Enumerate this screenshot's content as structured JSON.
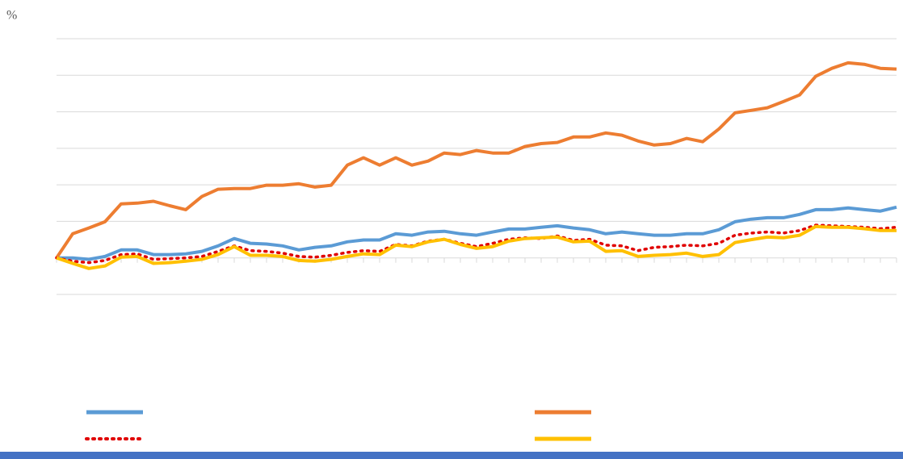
{
  "chart_data": {
    "type": "line",
    "y_label": "%",
    "categories": [
      null,
      null,
      null,
      null,
      null,
      null,
      null,
      null,
      null,
      null,
      null,
      null,
      null,
      null,
      null,
      null,
      null,
      null,
      null,
      null,
      null,
      null,
      null,
      null,
      null,
      null,
      null,
      null,
      null,
      null,
      null,
      null,
      null,
      null,
      null,
      null,
      null,
      null,
      null,
      null,
      null,
      null,
      null,
      null,
      null,
      null,
      null,
      null,
      null,
      null,
      null,
      null,
      null
    ],
    "ylim": [
      -1,
      6
    ],
    "yticks": [
      -1,
      0,
      1,
      2,
      3,
      4,
      5,
      6
    ],
    "grid": true,
    "series": [
      {
        "color": "#5b9bd5",
        "dash": "solid",
        "values": [
          0,
          0,
          -0.04,
          0.04,
          0.22,
          0.22,
          0.09,
          0.09,
          0.11,
          0.18,
          0.33,
          0.53,
          0.4,
          0.38,
          0.33,
          0.22,
          0.29,
          0.33,
          0.44,
          0.49,
          0.49,
          0.66,
          0.62,
          0.71,
          0.73,
          0.66,
          0.62,
          0.71,
          0.79,
          0.79,
          0.84,
          0.88,
          0.82,
          0.77,
          0.66,
          0.71,
          0.66,
          0.62,
          0.62,
          0.66,
          0.66,
          0.77,
          0.99,
          1.06,
          1.1,
          1.1,
          1.19,
          1.32,
          1.32,
          1.37,
          1.32,
          1.28,
          1.39
        ]
      },
      {
        "color": "#ed7d31",
        "dash": "solid",
        "values": [
          0,
          0.66,
          0.82,
          0.99,
          1.48,
          1.5,
          1.55,
          1.43,
          1.32,
          1.68,
          1.88,
          1.9,
          1.9,
          1.99,
          1.99,
          2.03,
          1.94,
          1.99,
          2.54,
          2.74,
          2.54,
          2.74,
          2.54,
          2.65,
          2.87,
          2.83,
          2.94,
          2.87,
          2.87,
          3.05,
          3.13,
          3.16,
          3.31,
          3.31,
          3.42,
          3.36,
          3.2,
          3.09,
          3.13,
          3.27,
          3.18,
          3.53,
          3.97,
          4.04,
          4.11,
          4.28,
          4.46,
          4.97,
          5.19,
          5.34,
          5.3,
          5.19,
          5.17
        ]
      },
      {
        "color": "#e00000",
        "dash": "dotted",
        "values": [
          0,
          -0.09,
          -0.13,
          -0.07,
          0.09,
          0.11,
          -0.04,
          -0.02,
          0,
          0.04,
          0.18,
          0.33,
          0.2,
          0.18,
          0.13,
          0.04,
          0.02,
          0.07,
          0.15,
          0.2,
          0.18,
          0.37,
          0.33,
          0.46,
          0.51,
          0.4,
          0.31,
          0.4,
          0.51,
          0.55,
          0.53,
          0.6,
          0.48,
          0.51,
          0.35,
          0.33,
          0.2,
          0.29,
          0.31,
          0.35,
          0.33,
          0.4,
          0.62,
          0.68,
          0.71,
          0.68,
          0.75,
          0.9,
          0.88,
          0.86,
          0.84,
          0.8,
          0.84
        ]
      },
      {
        "color": "#ffc000",
        "dash": "solid",
        "values": [
          0,
          -0.15,
          -0.29,
          -0.22,
          0.02,
          0.04,
          -0.15,
          -0.13,
          -0.09,
          -0.04,
          0.09,
          0.31,
          0.07,
          0.07,
          0.04,
          -0.07,
          -0.09,
          -0.04,
          0.04,
          0.11,
          0.09,
          0.35,
          0.31,
          0.44,
          0.51,
          0.37,
          0.26,
          0.31,
          0.46,
          0.53,
          0.55,
          0.57,
          0.44,
          0.46,
          0.18,
          0.2,
          0.04,
          0.07,
          0.09,
          0.13,
          0.04,
          0.09,
          0.42,
          0.5,
          0.57,
          0.55,
          0.62,
          0.86,
          0.84,
          0.84,
          0.8,
          0.75,
          0.75
        ]
      }
    ]
  }
}
